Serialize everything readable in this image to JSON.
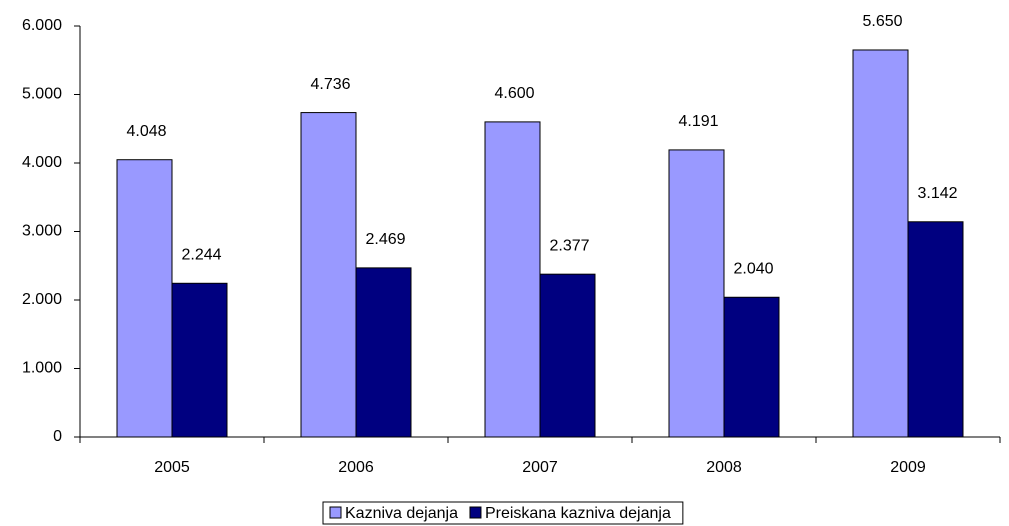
{
  "chart_data": {
    "type": "bar",
    "categories": [
      "2005",
      "2006",
      "2007",
      "2008",
      "2009"
    ],
    "series": [
      {
        "name": "Kazniva dejanja",
        "color": "#9999ff",
        "values": [
          4048,
          4736,
          4600,
          4191,
          5650
        ],
        "value_labels": [
          "4.048",
          "4.736",
          "4.600",
          "4.191",
          "5.650"
        ]
      },
      {
        "name": "Preiskana kazniva dejanja",
        "color": "#000080",
        "values": [
          2244,
          2469,
          2377,
          2040,
          3142
        ],
        "value_labels": [
          "2.244",
          "2.469",
          "2.377",
          "2.040",
          "3.142"
        ]
      }
    ],
    "ylim": [
      0,
      6000
    ],
    "yticks": [
      0,
      {
        "value": 1000,
        "label": "1.000"
      },
      {
        "value": 2000,
        "label": "2.000"
      },
      {
        "value": 3000,
        "label": "3.000"
      },
      {
        "value": 4000,
        "label": "4.000"
      },
      {
        "value": 5000,
        "label": "5.000"
      },
      {
        "value": 6000,
        "label": "6.000"
      }
    ],
    "grid": false,
    "legend": "bottom"
  }
}
